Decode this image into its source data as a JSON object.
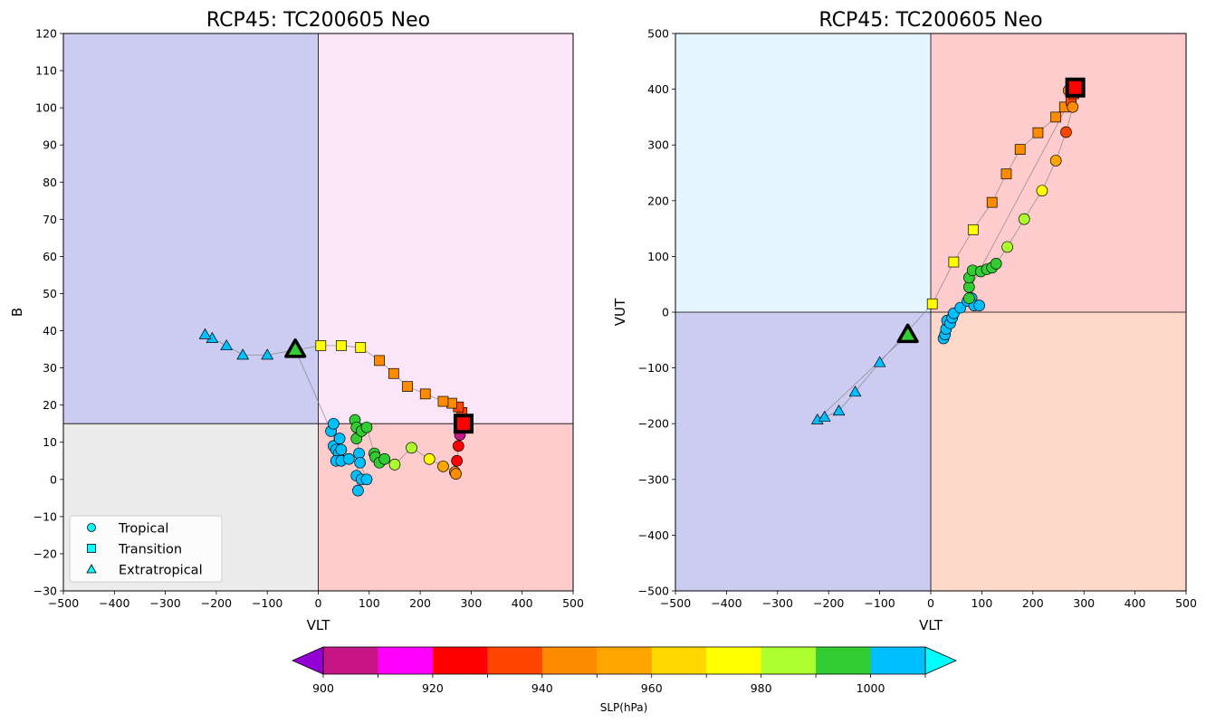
{
  "colormap": {
    "levels": [
      900,
      910,
      920,
      930,
      940,
      950,
      960,
      970,
      980,
      990,
      1000,
      1010
    ],
    "colors": [
      "#c71585",
      "#ff00ff",
      "#ff0000",
      "#ff4500",
      "#ff8c00",
      "#ffa500",
      "#ffd700",
      "#ffff00",
      "#adff2f",
      "#32cd32",
      "#00bfff"
    ],
    "under_color": "#9400d3",
    "over_color": "#00ffff",
    "tick_labels": [
      "900",
      "920",
      "940",
      "960",
      "980",
      "1000"
    ],
    "label": "SLP(hPa)"
  },
  "chart_data": [
    {
      "type": "scatter",
      "title": "RCP45: TC200605 Neo",
      "xlabel": "VLT",
      "ylabel": "B",
      "xlim": [
        -500,
        500
      ],
      "ylim": [
        -30,
        120
      ],
      "xticks": [
        -500,
        -400,
        -300,
        -200,
        -100,
        0,
        100,
        200,
        300,
        400,
        500
      ],
      "yticks": [
        -30,
        -20,
        -10,
        0,
        10,
        20,
        30,
        40,
        50,
        60,
        70,
        80,
        90,
        100,
        110,
        120
      ],
      "grid": false,
      "quadrant_lines": {
        "x": 0,
        "y": 15
      },
      "quadrant_colors": {
        "upper_left": "#ccccf3",
        "upper_right": "#fbe5f9",
        "lower_left": "#ececec",
        "lower_right": "#fecccc"
      },
      "legend": {
        "position": "lower-left",
        "entries": [
          {
            "label": "Tropical",
            "marker": "circle",
            "color": "#00ffff"
          },
          {
            "label": "Transition",
            "marker": "square",
            "color": "#00ffff"
          },
          {
            "label": "Extratropical",
            "marker": "triangle",
            "color": "#00ffff"
          }
        ]
      },
      "start": {
        "x": -45,
        "y": 35,
        "marker": "triangle",
        "color": "#32cd32"
      },
      "end": {
        "x": 285,
        "y": 15,
        "marker": "square",
        "color": "#ff0000"
      },
      "points": [
        {
          "x": 25,
          "y": 13,
          "p": 1003,
          "m": "circle"
        },
        {
          "x": 30,
          "y": 15,
          "p": 1003,
          "m": "circle"
        },
        {
          "x": 30,
          "y": 9,
          "p": 1003,
          "m": "circle"
        },
        {
          "x": 35,
          "y": 8,
          "p": 1003,
          "m": "circle"
        },
        {
          "x": 42,
          "y": 11,
          "p": 1003,
          "m": "circle"
        },
        {
          "x": 40,
          "y": 7,
          "p": 1003,
          "m": "circle"
        },
        {
          "x": 45,
          "y": 8,
          "p": 1003,
          "m": "circle"
        },
        {
          "x": 35,
          "y": 5,
          "p": 1003,
          "m": "circle"
        },
        {
          "x": 45,
          "y": 5,
          "p": 1003,
          "m": "circle"
        },
        {
          "x": 60,
          "y": 5.5,
          "p": 1003,
          "m": "circle"
        },
        {
          "x": 80,
          "y": 7,
          "p": 1003,
          "m": "circle"
        },
        {
          "x": 75,
          "y": 1,
          "p": 1003,
          "m": "circle"
        },
        {
          "x": 78,
          "y": -3,
          "p": 1003,
          "m": "circle"
        },
        {
          "x": 85,
          "y": 0,
          "p": 1003,
          "m": "circle"
        },
        {
          "x": 95,
          "y": 0,
          "p": 1003,
          "m": "circle"
        },
        {
          "x": 82,
          "y": 4.5,
          "p": 1003,
          "m": "circle"
        },
        {
          "x": 72,
          "y": 16,
          "p": 995,
          "m": "circle"
        },
        {
          "x": 75,
          "y": 14,
          "p": 995,
          "m": "circle"
        },
        {
          "x": 75,
          "y": 11,
          "p": 995,
          "m": "circle"
        },
        {
          "x": 85,
          "y": 13,
          "p": 995,
          "m": "circle"
        },
        {
          "x": 95,
          "y": 14,
          "p": 995,
          "m": "circle"
        },
        {
          "x": 110,
          "y": 7,
          "p": 995,
          "m": "circle"
        },
        {
          "x": 112,
          "y": 6,
          "p": 995,
          "m": "circle"
        },
        {
          "x": 120,
          "y": 4.5,
          "p": 995,
          "m": "circle"
        },
        {
          "x": 130,
          "y": 5.5,
          "p": 995,
          "m": "circle"
        },
        {
          "x": 150,
          "y": 4,
          "p": 985,
          "m": "circle"
        },
        {
          "x": 183,
          "y": 8.5,
          "p": 985,
          "m": "circle"
        },
        {
          "x": 218,
          "y": 5.5,
          "p": 975,
          "m": "circle"
        },
        {
          "x": 245,
          "y": 3.5,
          "p": 955,
          "m": "circle"
        },
        {
          "x": 268,
          "y": 2,
          "p": 945,
          "m": "circle"
        },
        {
          "x": 270,
          "y": 1.5,
          "p": 945,
          "m": "circle"
        },
        {
          "x": 272,
          "y": 5,
          "p": 925,
          "m": "circle"
        },
        {
          "x": 275,
          "y": 9,
          "p": 925,
          "m": "circle"
        },
        {
          "x": 278,
          "y": 12,
          "p": 905,
          "m": "circle"
        },
        {
          "x": 282,
          "y": 18,
          "p": 935,
          "m": "square"
        },
        {
          "x": 275,
          "y": 19.5,
          "p": 935,
          "m": "square"
        },
        {
          "x": 262,
          "y": 20.5,
          "p": 945,
          "m": "square"
        },
        {
          "x": 245,
          "y": 21,
          "p": 945,
          "m": "square"
        },
        {
          "x": 210,
          "y": 23,
          "p": 945,
          "m": "square"
        },
        {
          "x": 175,
          "y": 25,
          "p": 945,
          "m": "square"
        },
        {
          "x": 148,
          "y": 28.5,
          "p": 945,
          "m": "square"
        },
        {
          "x": 120,
          "y": 32,
          "p": 945,
          "m": "square"
        },
        {
          "x": 83,
          "y": 35.5,
          "p": 975,
          "m": "square"
        },
        {
          "x": 45,
          "y": 36,
          "p": 975,
          "m": "square"
        },
        {
          "x": 5,
          "y": 36,
          "p": 975,
          "m": "square"
        },
        {
          "x": -100,
          "y": 33.5,
          "p": 1005,
          "m": "triangle"
        },
        {
          "x": -148,
          "y": 33.5,
          "p": 1005,
          "m": "triangle"
        },
        {
          "x": -180,
          "y": 36,
          "p": 1005,
          "m": "triangle"
        },
        {
          "x": -208,
          "y": 38,
          "p": 1005,
          "m": "triangle"
        },
        {
          "x": -222,
          "y": 39,
          "p": 1005,
          "m": "triangle"
        }
      ]
    },
    {
      "type": "scatter",
      "title": "RCP45: TC200605 Neo",
      "xlabel": "VLT",
      "ylabel": "VUT",
      "xlim": [
        -500,
        500
      ],
      "ylim": [
        -500,
        500
      ],
      "xticks": [
        -500,
        -400,
        -300,
        -200,
        -100,
        0,
        100,
        200,
        300,
        400,
        500
      ],
      "yticks": [
        -500,
        -400,
        -300,
        -200,
        -100,
        0,
        100,
        200,
        300,
        400,
        500
      ],
      "grid": false,
      "quadrant_lines": {
        "x": 0,
        "y": 0
      },
      "quadrant_colors": {
        "upper_left": "#e5f4fe",
        "upper_right": "#fecccc",
        "lower_left": "#ccccf3",
        "lower_right": "#fed8c8"
      },
      "start": {
        "x": -45,
        "y": -40,
        "marker": "triangle",
        "color": "#32cd32"
      },
      "end": {
        "x": 283,
        "y": 403,
        "marker": "square",
        "color": "#ff0000"
      },
      "points": [
        {
          "x": -222,
          "y": -193,
          "p": 1005,
          "m": "triangle"
        },
        {
          "x": -208,
          "y": -188,
          "p": 1005,
          "m": "triangle"
        },
        {
          "x": -180,
          "y": -177,
          "p": 1005,
          "m": "triangle"
        },
        {
          "x": -148,
          "y": -143,
          "p": 1005,
          "m": "triangle"
        },
        {
          "x": -100,
          "y": -90,
          "p": 1005,
          "m": "triangle"
        },
        {
          "x": 3,
          "y": 15,
          "p": 975,
          "m": "square"
        },
        {
          "x": 45,
          "y": 90,
          "p": 975,
          "m": "square"
        },
        {
          "x": 83,
          "y": 148,
          "p": 975,
          "m": "square"
        },
        {
          "x": 120,
          "y": 197,
          "p": 945,
          "m": "square"
        },
        {
          "x": 148,
          "y": 248,
          "p": 945,
          "m": "square"
        },
        {
          "x": 175,
          "y": 292,
          "p": 945,
          "m": "square"
        },
        {
          "x": 210,
          "y": 322,
          "p": 945,
          "m": "square"
        },
        {
          "x": 245,
          "y": 350,
          "p": 945,
          "m": "square"
        },
        {
          "x": 262,
          "y": 368,
          "p": 945,
          "m": "square"
        },
        {
          "x": 275,
          "y": 380,
          "p": 935,
          "m": "square"
        },
        {
          "x": 280,
          "y": 392,
          "p": 935,
          "m": "square"
        },
        {
          "x": 25,
          "y": -47,
          "p": 1003,
          "m": "circle"
        },
        {
          "x": 28,
          "y": -40,
          "p": 1003,
          "m": "circle"
        },
        {
          "x": 30,
          "y": -30,
          "p": 1003,
          "m": "circle"
        },
        {
          "x": 32,
          "y": -15,
          "p": 1003,
          "m": "circle"
        },
        {
          "x": 38,
          "y": -20,
          "p": 1003,
          "m": "circle"
        },
        {
          "x": 42,
          "y": -10,
          "p": 1003,
          "m": "circle"
        },
        {
          "x": 45,
          "y": -2,
          "p": 1003,
          "m": "circle"
        },
        {
          "x": 58,
          "y": 8,
          "p": 1003,
          "m": "circle"
        },
        {
          "x": 72,
          "y": 20,
          "p": 1003,
          "m": "circle"
        },
        {
          "x": 80,
          "y": 25,
          "p": 1003,
          "m": "circle"
        },
        {
          "x": 85,
          "y": 12,
          "p": 1003,
          "m": "circle"
        },
        {
          "x": 95,
          "y": 12,
          "p": 1003,
          "m": "circle"
        },
        {
          "x": 75,
          "y": 25,
          "p": 995,
          "m": "circle"
        },
        {
          "x": 75,
          "y": 45,
          "p": 995,
          "m": "circle"
        },
        {
          "x": 75,
          "y": 62,
          "p": 995,
          "m": "circle"
        },
        {
          "x": 82,
          "y": 75,
          "p": 995,
          "m": "circle"
        },
        {
          "x": 98,
          "y": 73,
          "p": 995,
          "m": "circle"
        },
        {
          "x": 110,
          "y": 77,
          "p": 995,
          "m": "circle"
        },
        {
          "x": 120,
          "y": 80,
          "p": 995,
          "m": "circle"
        },
        {
          "x": 128,
          "y": 87,
          "p": 995,
          "m": "circle"
        },
        {
          "x": 150,
          "y": 117,
          "p": 985,
          "m": "circle"
        },
        {
          "x": 183,
          "y": 167,
          "p": 985,
          "m": "circle"
        },
        {
          "x": 218,
          "y": 218,
          "p": 975,
          "m": "circle"
        },
        {
          "x": 245,
          "y": 272,
          "p": 955,
          "m": "circle"
        },
        {
          "x": 265,
          "y": 323,
          "p": 935,
          "m": "circle"
        },
        {
          "x": 278,
          "y": 368,
          "p": 945,
          "m": "circle"
        },
        {
          "x": 270,
          "y": 398,
          "p": 945,
          "m": "circle"
        }
      ]
    }
  ]
}
